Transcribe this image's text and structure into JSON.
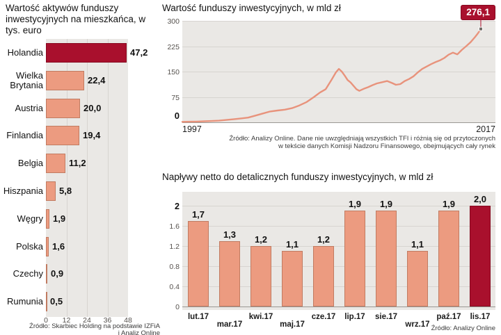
{
  "colors": {
    "salmon": "#EC9B80",
    "salmon_border": "#C2males"
  }
}
